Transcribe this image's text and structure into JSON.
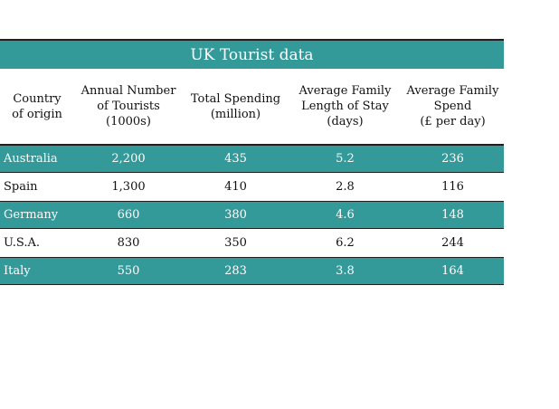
{
  "table": {
    "title": "UK Tourist data",
    "headers": [
      "Country\nof origin",
      "Annual Number\nof Tourists\n(1000s)",
      "Total Spending\n(million)",
      "Average Family\nLength of Stay\n(days)",
      "Average Family\nSpend\n(£ per day)"
    ],
    "rows": [
      [
        "Australia",
        "2,200",
        "435",
        "5.2",
        "236"
      ],
      [
        "Spain",
        "1,300",
        "410",
        "2.8",
        "116"
      ],
      [
        "Germany",
        "660",
        "380",
        "4.6",
        "148"
      ],
      [
        "U.S.A.",
        "830",
        "350",
        "6.2",
        "244"
      ],
      [
        "Italy",
        "550",
        "283",
        "3.8",
        "164"
      ]
    ]
  },
  "colors": {
    "accent": "#339999",
    "border": "#1f1f1f"
  }
}
